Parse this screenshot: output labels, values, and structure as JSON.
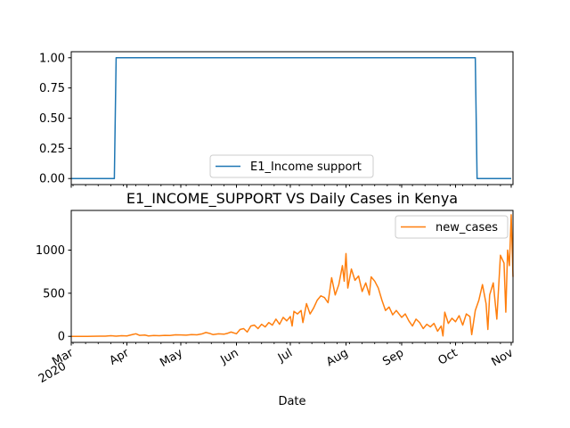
{
  "chart_data": [
    {
      "type": "line",
      "title": "",
      "xlabel": "",
      "ylabel": "",
      "ylim": [
        -0.05,
        1.05
      ],
      "yticks": [
        "0.00",
        "0.25",
        "0.50",
        "0.75",
        "1.00"
      ],
      "legend_position": "lower center",
      "grid": false,
      "series": [
        {
          "name": "E1_Income support",
          "color": "#1f77b4",
          "points": [
            [
              "2020-03-01",
              0
            ],
            [
              "2020-03-25",
              0
            ],
            [
              "2020-03-26",
              1
            ],
            [
              "2020-10-12",
              1
            ],
            [
              "2020-10-13",
              0
            ],
            [
              "2020-11-01",
              0
            ]
          ]
        }
      ]
    },
    {
      "type": "line",
      "title": "E1_INCOME_SUPPORT VS Daily Cases in Kenya",
      "xlabel": "Date",
      "ylabel": "",
      "ylim": [
        -70,
        1460
      ],
      "yticks": [
        "0",
        "500",
        "1000"
      ],
      "legend_position": "upper right",
      "grid": false,
      "xticks": [
        {
          "label": "Mar",
          "sub": "2020",
          "date": "2020-03-01"
        },
        {
          "label": "Apr",
          "date": "2020-04-01"
        },
        {
          "label": "May",
          "date": "2020-05-01"
        },
        {
          "label": "Jun",
          "date": "2020-06-01"
        },
        {
          "label": "Jul",
          "date": "2020-07-01"
        },
        {
          "label": "Aug",
          "date": "2020-08-01"
        },
        {
          "label": "Sep",
          "date": "2020-09-01"
        },
        {
          "label": "Oct",
          "date": "2020-10-01"
        },
        {
          "label": "Nov",
          "date": "2020-11-01"
        }
      ],
      "series": [
        {
          "name": "new_cases",
          "color": "#ff7f0e",
          "points": [
            [
              "2020-03-01",
              0
            ],
            [
              "2020-03-10",
              0
            ],
            [
              "2020-03-13",
              1
            ],
            [
              "2020-03-17",
              2
            ],
            [
              "2020-03-20",
              3
            ],
            [
              "2020-03-23",
              7
            ],
            [
              "2020-03-26",
              3
            ],
            [
              "2020-03-29",
              8
            ],
            [
              "2020-04-01",
              5
            ],
            [
              "2020-04-04",
              20
            ],
            [
              "2020-04-06",
              30
            ],
            [
              "2020-04-08",
              12
            ],
            [
              "2020-04-11",
              15
            ],
            [
              "2020-04-13",
              5
            ],
            [
              "2020-04-16",
              10
            ],
            [
              "2020-04-19",
              8
            ],
            [
              "2020-04-22",
              12
            ],
            [
              "2020-04-25",
              10
            ],
            [
              "2020-04-28",
              18
            ],
            [
              "2020-05-01",
              16
            ],
            [
              "2020-05-04",
              14
            ],
            [
              "2020-05-07",
              20
            ],
            [
              "2020-05-10",
              18
            ],
            [
              "2020-05-13",
              30
            ],
            [
              "2020-05-15",
              45
            ],
            [
              "2020-05-17",
              35
            ],
            [
              "2020-05-19",
              20
            ],
            [
              "2020-05-22",
              30
            ],
            [
              "2020-05-25",
              25
            ],
            [
              "2020-05-27",
              35
            ],
            [
              "2020-05-29",
              50
            ],
            [
              "2020-06-01",
              30
            ],
            [
              "2020-06-03",
              80
            ],
            [
              "2020-06-05",
              90
            ],
            [
              "2020-06-07",
              50
            ],
            [
              "2020-06-09",
              120
            ],
            [
              "2020-06-11",
              130
            ],
            [
              "2020-06-13",
              90
            ],
            [
              "2020-06-15",
              140
            ],
            [
              "2020-06-17",
              110
            ],
            [
              "2020-06-19",
              160
            ],
            [
              "2020-06-21",
              130
            ],
            [
              "2020-06-23",
              200
            ],
            [
              "2020-06-25",
              140
            ],
            [
              "2020-06-27",
              220
            ],
            [
              "2020-06-29",
              180
            ],
            [
              "2020-07-01",
              230
            ],
            [
              "2020-07-02",
              120
            ],
            [
              "2020-07-03",
              290
            ],
            [
              "2020-07-05",
              260
            ],
            [
              "2020-07-07",
              300
            ],
            [
              "2020-07-08",
              160
            ],
            [
              "2020-07-10",
              380
            ],
            [
              "2020-07-12",
              260
            ],
            [
              "2020-07-14",
              330
            ],
            [
              "2020-07-16",
              420
            ],
            [
              "2020-07-18",
              470
            ],
            [
              "2020-07-20",
              450
            ],
            [
              "2020-07-22",
              390
            ],
            [
              "2020-07-24",
              680
            ],
            [
              "2020-07-26",
              480
            ],
            [
              "2020-07-28",
              600
            ],
            [
              "2020-07-30",
              820
            ],
            [
              "2020-07-31",
              640
            ],
            [
              "2020-08-01",
              960
            ],
            [
              "2020-08-02",
              560
            ],
            [
              "2020-08-04",
              780
            ],
            [
              "2020-08-06",
              650
            ],
            [
              "2020-08-08",
              700
            ],
            [
              "2020-08-10",
              520
            ],
            [
              "2020-08-12",
              620
            ],
            [
              "2020-08-14",
              480
            ],
            [
              "2020-08-15",
              690
            ],
            [
              "2020-08-17",
              640
            ],
            [
              "2020-08-19",
              560
            ],
            [
              "2020-08-21",
              420
            ],
            [
              "2020-08-23",
              300
            ],
            [
              "2020-08-25",
              340
            ],
            [
              "2020-08-27",
              250
            ],
            [
              "2020-08-29",
              300
            ],
            [
              "2020-09-01",
              220
            ],
            [
              "2020-09-03",
              260
            ],
            [
              "2020-09-05",
              180
            ],
            [
              "2020-09-07",
              120
            ],
            [
              "2020-09-09",
              200
            ],
            [
              "2020-09-11",
              160
            ],
            [
              "2020-09-13",
              90
            ],
            [
              "2020-09-15",
              140
            ],
            [
              "2020-09-17",
              110
            ],
            [
              "2020-09-19",
              150
            ],
            [
              "2020-09-21",
              60
            ],
            [
              "2020-09-23",
              120
            ],
            [
              "2020-09-24",
              5
            ],
            [
              "2020-09-25",
              280
            ],
            [
              "2020-09-27",
              150
            ],
            [
              "2020-09-29",
              210
            ],
            [
              "2020-10-01",
              170
            ],
            [
              "2020-10-03",
              240
            ],
            [
              "2020-10-05",
              130
            ],
            [
              "2020-10-07",
              260
            ],
            [
              "2020-10-09",
              230
            ],
            [
              "2020-10-10",
              20
            ],
            [
              "2020-10-12",
              300
            ],
            [
              "2020-10-14",
              420
            ],
            [
              "2020-10-16",
              600
            ],
            [
              "2020-10-18",
              380
            ],
            [
              "2020-10-19",
              80
            ],
            [
              "2020-10-20",
              480
            ],
            [
              "2020-10-22",
              620
            ],
            [
              "2020-10-24",
              200
            ],
            [
              "2020-10-26",
              940
            ],
            [
              "2020-10-28",
              850
            ],
            [
              "2020-10-29",
              280
            ],
            [
              "2020-10-30",
              1000
            ],
            [
              "2020-10-31",
              820
            ],
            [
              "2020-11-01",
              1410
            ],
            [
              "2020-11-02",
              690
            ]
          ]
        }
      ]
    }
  ]
}
